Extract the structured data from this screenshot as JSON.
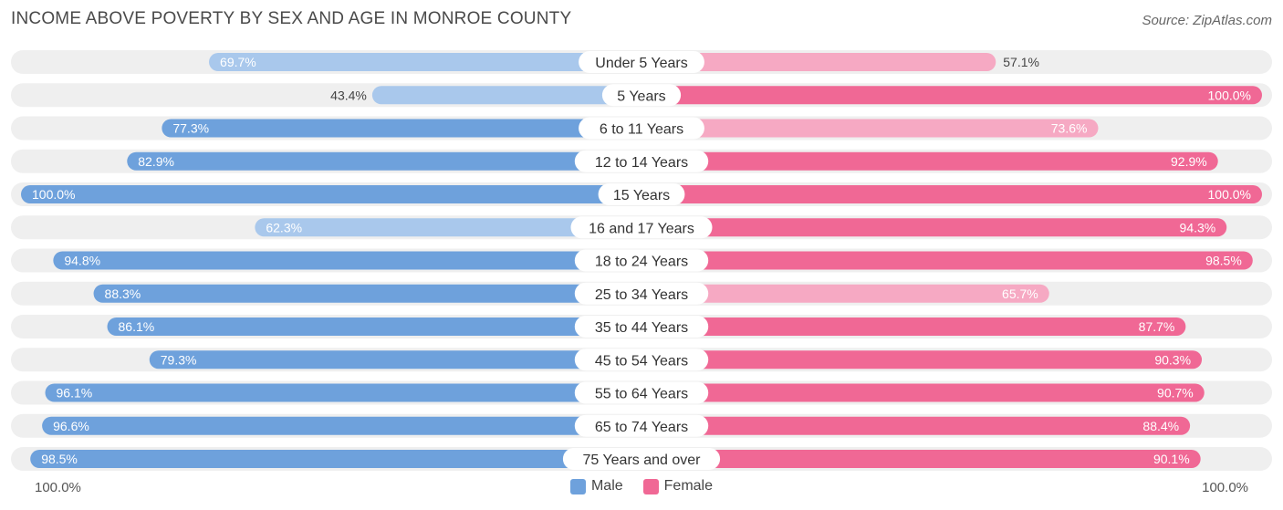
{
  "chart_data": {
    "type": "bar",
    "title": "INCOME ABOVE POVERTY BY SEX AND AGE IN MONROE COUNTY",
    "source": "Source: ZipAtlas.com",
    "categories": [
      "Under 5 Years",
      "5 Years",
      "6 to 11 Years",
      "12 to 14 Years",
      "15 Years",
      "16 and 17 Years",
      "18 to 24 Years",
      "25 to 34 Years",
      "35 to 44 Years",
      "45 to 54 Years",
      "55 to 64 Years",
      "65 to 74 Years",
      "75 Years and over"
    ],
    "series": [
      {
        "name": "Male",
        "values": [
          69.7,
          43.4,
          77.3,
          82.9,
          100.0,
          62.3,
          94.8,
          88.3,
          86.1,
          79.3,
          96.1,
          96.6,
          98.5
        ]
      },
      {
        "name": "Female",
        "values": [
          57.1,
          100.0,
          73.6,
          92.9,
          100.0,
          94.3,
          98.5,
          65.7,
          87.7,
          90.3,
          90.7,
          88.4,
          90.1
        ]
      }
    ],
    "xlim": [
      0,
      100
    ],
    "left_axis_label": "100.0%",
    "right_axis_label": "100.0%",
    "colors": {
      "male": "#6ea1dc",
      "male_light": "#a9c8ec",
      "female": "#f06895",
      "female_light": "#f6a9c3",
      "track": "#efefef"
    }
  }
}
